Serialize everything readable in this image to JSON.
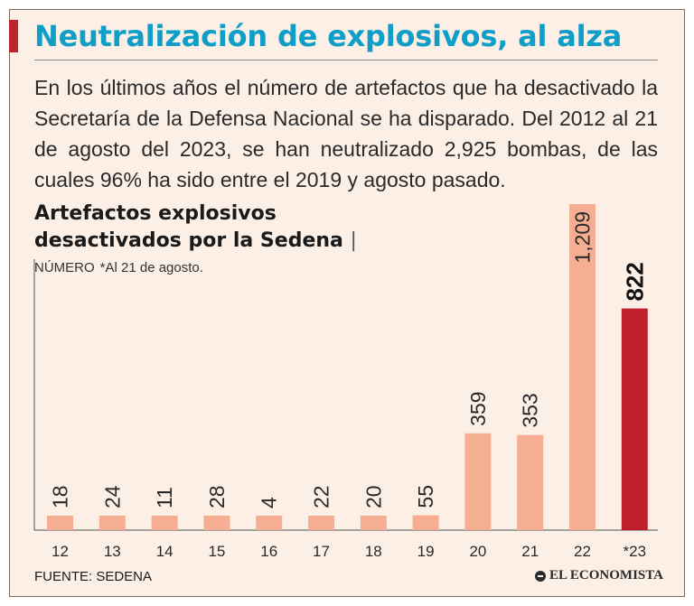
{
  "title": "Neutralización de explosivos, al alza",
  "description": "En los últimos años el número de artefactos que ha desactivado la Secretaría de la Defensa Nacional se ha disparado. Del 2012 al 21 de agosto del 2023, se han neutralizado 2,925 bombas, de las cuales 96% ha sido entre el 2019 y agosto pasado.",
  "chart_title_line1": "Artefactos explosivos",
  "chart_title_line2": "desactivados por la Sedena",
  "chart_title_separator": "|",
  "chart_subtitle": "NÚMERO",
  "chart_note": "*Al 21 de agosto.",
  "source": "FUENTE: SEDENA",
  "brand": "EL ECONOMISTA",
  "colors": {
    "title": "#0f9ec8",
    "accent": "#c0232b",
    "bar": "#f6ae93",
    "highlight_bar": "#bf1f2c",
    "background": "#fcefe6"
  },
  "chart_data": {
    "type": "bar",
    "title": "Artefactos explosivos desactivados por la Sedena",
    "subtitle": "NÚMERO *Al 21 de agosto.",
    "xlabel": "",
    "ylabel": "",
    "categories": [
      "12",
      "13",
      "14",
      "15",
      "16",
      "17",
      "18",
      "19",
      "20",
      "21",
      "22",
      "*23"
    ],
    "values": [
      18,
      24,
      11,
      28,
      4,
      22,
      20,
      55,
      359,
      353,
      1209,
      822
    ],
    "value_labels": [
      "18",
      "24",
      "11",
      "28",
      "4",
      "22",
      "20",
      "55",
      "359",
      "353",
      "1,209",
      "822"
    ],
    "highlight_index": 11,
    "ylim": [
      0,
      1209
    ],
    "grid": false,
    "legend": "none"
  }
}
